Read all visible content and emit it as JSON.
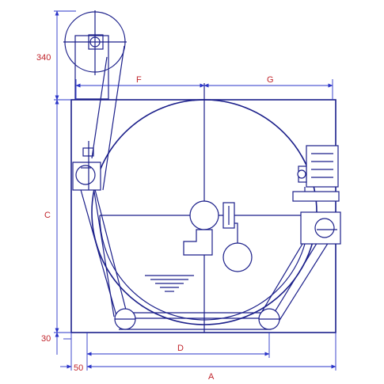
{
  "dimensions": {
    "label_340": "340",
    "label_f": "F",
    "label_g": "G",
    "label_c": "C",
    "label_30": "30",
    "label_d": "D",
    "label_50": "50",
    "label_a": "A"
  },
  "colors": {
    "line": "#1b1f8a",
    "dimension": "#2a34c8",
    "label": "#c0242b"
  }
}
